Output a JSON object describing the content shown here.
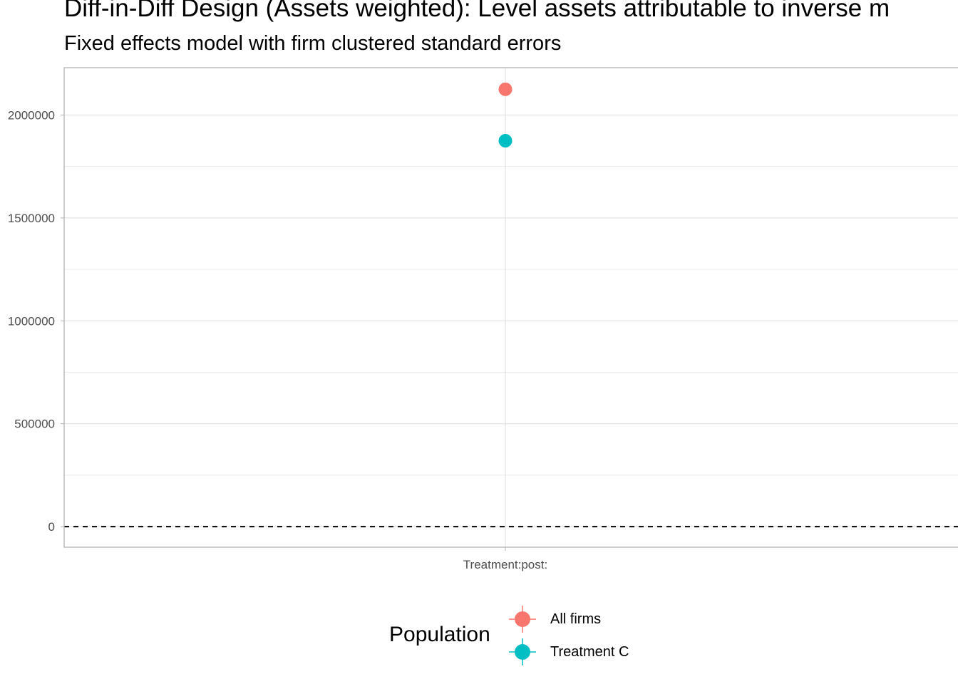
{
  "chart_data": {
    "type": "scatter",
    "title": "Diff-in-Diff Design (Assets weighted): Level assets attributable to inverse m",
    "subtitle": "Fixed effects model with firm clustered standard errors",
    "categories": [
      "Treatment:post:"
    ],
    "series": [
      {
        "name": "All firms",
        "color": "#F8766D",
        "values": [
          2125000
        ]
      },
      {
        "name": "Treatment C",
        "color": "#00BFC4",
        "values": [
          1875000
        ]
      }
    ],
    "y_ticks": [
      0,
      500000,
      1000000,
      1500000,
      2000000
    ],
    "y_tick_labels": [
      "0",
      "500000",
      "1000000",
      "1500000",
      "2000000"
    ],
    "ylim": [
      -100000,
      2230000
    ],
    "reference_line": {
      "y": 0,
      "style": "dashed"
    },
    "grid": true,
    "legend": {
      "title": "Population",
      "position": "bottom"
    }
  }
}
